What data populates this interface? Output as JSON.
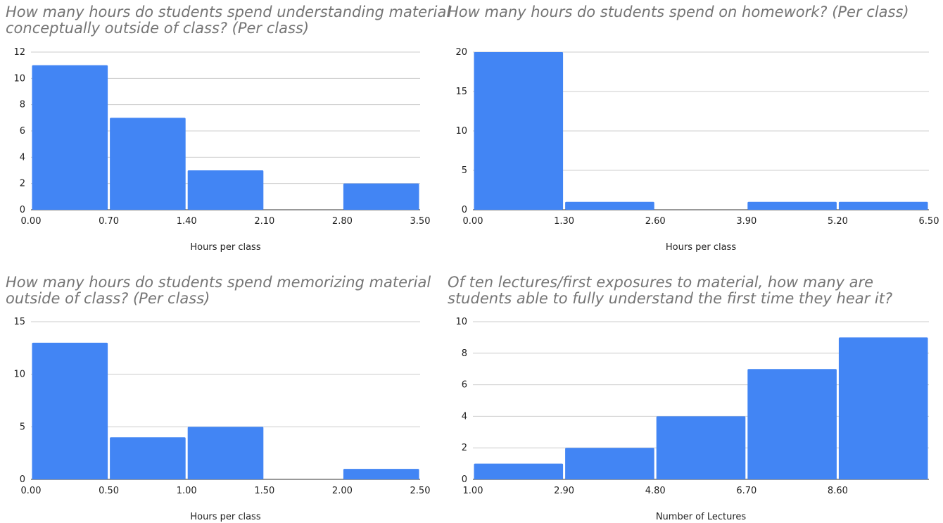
{
  "chart_data": [
    {
      "type": "bar",
      "title": "How many hours do students spend understanding material conceptually outside of class? (Per class)",
      "xlabel": "Hours per class",
      "ylabel": "",
      "bins": [
        [
          0.0,
          0.7
        ],
        [
          0.7,
          1.4
        ],
        [
          1.4,
          2.1
        ],
        [
          2.1,
          2.8
        ],
        [
          2.8,
          3.5
        ]
      ],
      "values": [
        11,
        7,
        3,
        0,
        2
      ],
      "x_ticks": [
        "0.00",
        "0.70",
        "1.40",
        "2.10",
        "2.80",
        "3.50"
      ],
      "y_ticks": [
        0,
        2,
        4,
        6,
        8,
        10,
        12
      ],
      "ylim": [
        0,
        12
      ],
      "grid": true,
      "color": "#4285f4"
    },
    {
      "type": "bar",
      "title": "How many hours do students spend on homework? (Per class)",
      "xlabel": "Hours per class",
      "ylabel": "",
      "bins": [
        [
          0.0,
          1.3
        ],
        [
          1.3,
          2.6
        ],
        [
          2.6,
          3.9
        ],
        [
          3.9,
          5.2
        ],
        [
          5.2,
          6.5
        ]
      ],
      "values": [
        20,
        1,
        0,
        1,
        1
      ],
      "x_ticks": [
        "0.00",
        "1.30",
        "2.60",
        "3.90",
        "5.20",
        "6.50"
      ],
      "y_ticks": [
        0,
        5,
        10,
        15,
        20
      ],
      "ylim": [
        0,
        20
      ],
      "grid": true,
      "color": "#4285f4"
    },
    {
      "type": "bar",
      "title": "How many hours do students spend memorizing material outside of class? (Per class)",
      "xlabel": "Hours per class",
      "ylabel": "",
      "bins": [
        [
          0.0,
          0.5
        ],
        [
          0.5,
          1.0
        ],
        [
          1.0,
          1.5
        ],
        [
          1.5,
          2.0
        ],
        [
          2.0,
          2.5
        ]
      ],
      "values": [
        13,
        4,
        5,
        0,
        1
      ],
      "x_ticks": [
        "0.00",
        "0.50",
        "1.00",
        "1.50",
        "2.00",
        "2.50"
      ],
      "y_ticks": [
        0,
        5,
        10,
        15
      ],
      "ylim": [
        0,
        15
      ],
      "grid": true,
      "color": "#4285f4"
    },
    {
      "type": "bar",
      "title": "Of ten lectures/first exposures to material, how many are students able to fully understand the first time they hear it?",
      "xlabel": "Number of Lectures",
      "ylabel": "",
      "bins": [
        [
          1.0,
          2.9
        ],
        [
          2.9,
          4.8
        ],
        [
          4.8,
          6.7
        ],
        [
          6.7,
          8.6
        ],
        [
          8.6,
          10.5
        ]
      ],
      "values": [
        1,
        2,
        4,
        7,
        9
      ],
      "x_ticks": [
        "1.00",
        "2.90",
        "4.80",
        "6.70",
        "8.60",
        ""
      ],
      "y_ticks": [
        0,
        2,
        4,
        6,
        8,
        10
      ],
      "ylim": [
        0,
        10
      ],
      "grid": true,
      "color": "#4285f4"
    }
  ]
}
